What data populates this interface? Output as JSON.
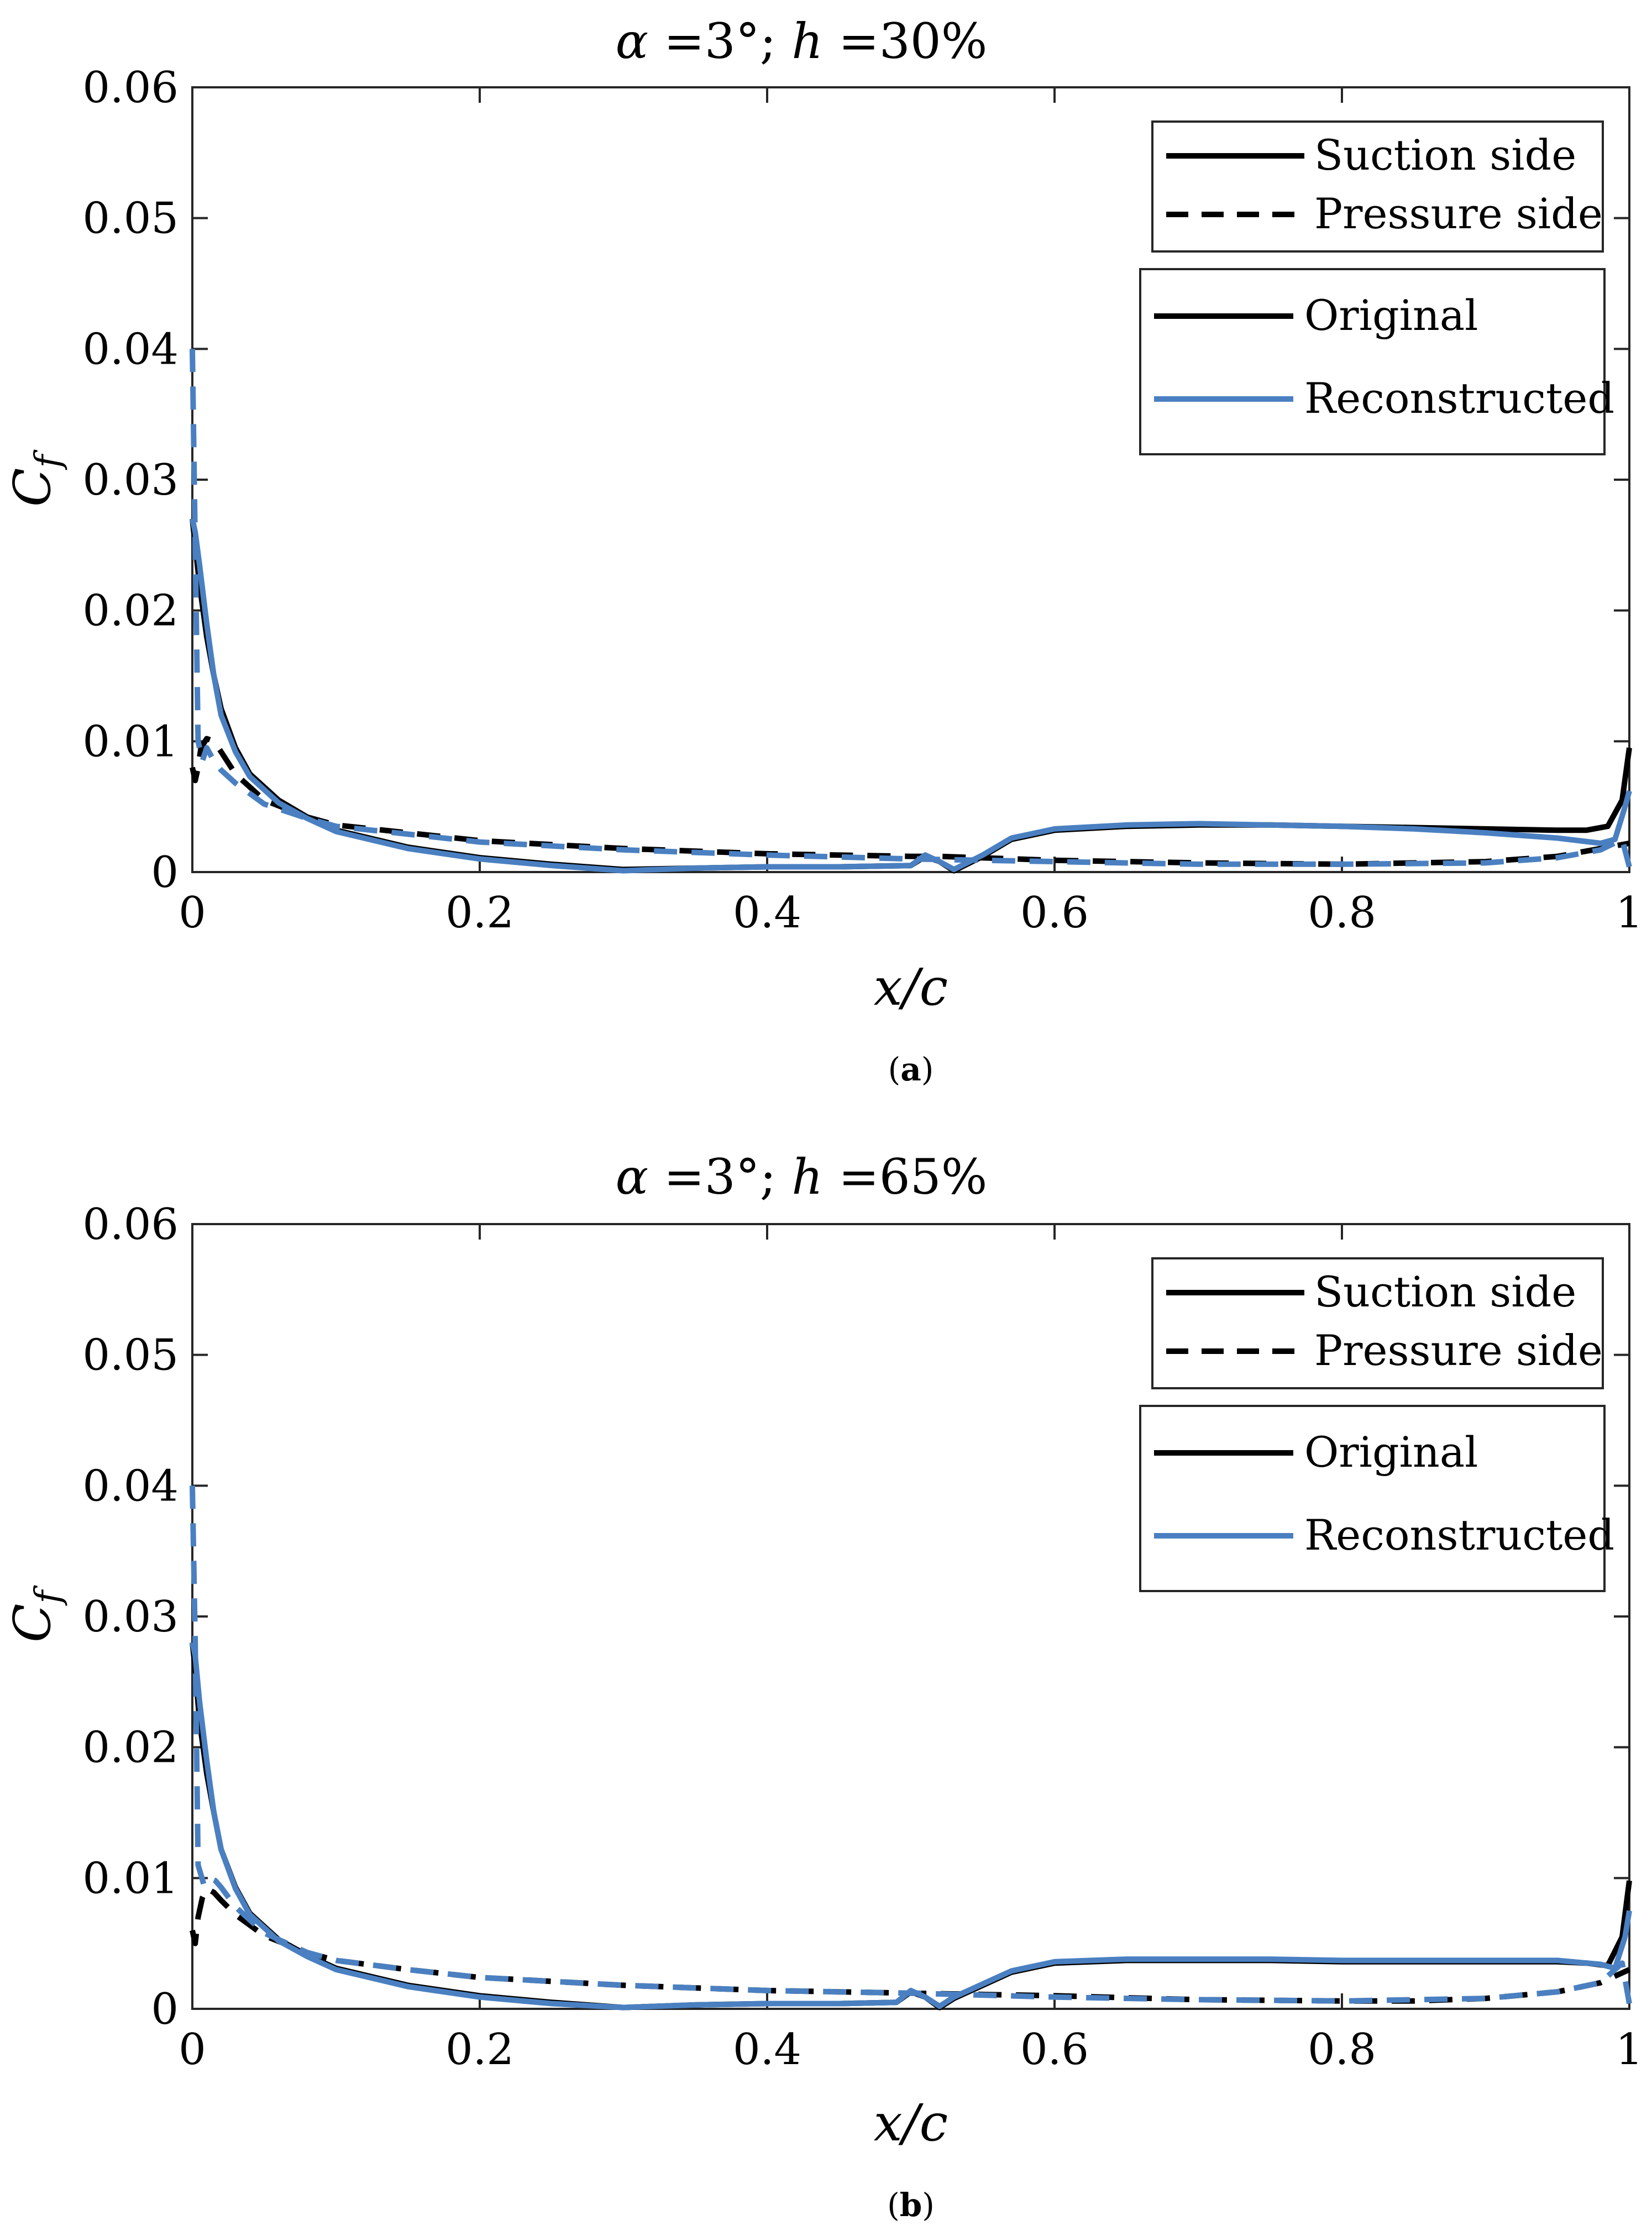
{
  "chart_data": [
    {
      "type": "line",
      "id": "a",
      "title": {
        "alpha": "α",
        "eq1": " =",
        "angle": "3°",
        "sep": "; ",
        "h": "h",
        "eq2": " =",
        "pct": "30%"
      },
      "xlabel": "x/c",
      "ylabel": {
        "main": "C",
        "sub": "f"
      },
      "caption": {
        "open": "(",
        "letter": "a",
        "close": ")"
      },
      "xlim": [
        0,
        1
      ],
      "ylim": [
        0,
        0.06
      ],
      "xticks": [
        0,
        0.2,
        0.4,
        0.6,
        0.8,
        1
      ],
      "xtick_labels": [
        "0",
        "0.2",
        "0.4",
        "0.6",
        "0.8",
        "1"
      ],
      "yticks": [
        0,
        0.01,
        0.02,
        0.03,
        0.04,
        0.05,
        0.06
      ],
      "ytick_labels": [
        "0",
        "0.01",
        "0.02",
        "0.03",
        "0.04",
        "0.05",
        "0.06"
      ],
      "legend_linestyle": [
        {
          "label": "Suction side",
          "style": "solid"
        },
        {
          "label": "Pressure side",
          "style": "dashed"
        }
      ],
      "legend_source": [
        {
          "label": "Original",
          "color": "#000000"
        },
        {
          "label": "Reconstructed",
          "color": "#4a80c1"
        }
      ],
      "series": [
        {
          "name": "Original suction side",
          "color": "#000000",
          "style": "solid",
          "x": [
            0,
            0.002,
            0.005,
            0.01,
            0.015,
            0.02,
            0.03,
            0.04,
            0.06,
            0.08,
            0.1,
            0.15,
            0.2,
            0.25,
            0.3,
            0.35,
            0.4,
            0.45,
            0.5,
            0.51,
            0.52,
            0.53,
            0.55,
            0.57,
            0.6,
            0.65,
            0.7,
            0.75,
            0.8,
            0.85,
            0.9,
            0.95,
            0.97,
            0.985,
            0.995,
            1.0
          ],
          "y": [
            0.027,
            0.025,
            0.022,
            0.018,
            0.015,
            0.0125,
            0.0095,
            0.0075,
            0.0055,
            0.0042,
            0.0032,
            0.0019,
            0.0011,
            0.0006,
            0.0002,
            0.0003,
            0.0004,
            0.0004,
            0.0005,
            0.0012,
            0.0008,
            0.0001,
            0.0012,
            0.0025,
            0.0032,
            0.0035,
            0.0036,
            0.0036,
            0.0035,
            0.0034,
            0.0033,
            0.0032,
            0.0032,
            0.0035,
            0.0055,
            0.0095
          ]
        },
        {
          "name": "Original pressure side",
          "color": "#000000",
          "style": "dashed",
          "x": [
            0,
            0.002,
            0.004,
            0.006,
            0.01,
            0.015,
            0.02,
            0.03,
            0.05,
            0.08,
            0.1,
            0.15,
            0.2,
            0.3,
            0.4,
            0.5,
            0.52,
            0.6,
            0.7,
            0.8,
            0.9,
            0.95,
            0.98,
            1.0
          ],
          "y": [
            0.008,
            0.007,
            0.008,
            0.0095,
            0.0102,
            0.01,
            0.0092,
            0.0075,
            0.0055,
            0.0042,
            0.0036,
            0.003,
            0.0024,
            0.0018,
            0.0014,
            0.0012,
            0.0012,
            0.0009,
            0.0007,
            0.0006,
            0.0008,
            0.0012,
            0.0018,
            0.0022
          ]
        },
        {
          "name": "Reconstructed suction side",
          "color": "#4a80c1",
          "style": "solid",
          "x": [
            0,
            0.002,
            0.005,
            0.01,
            0.015,
            0.02,
            0.03,
            0.04,
            0.06,
            0.08,
            0.1,
            0.15,
            0.2,
            0.25,
            0.3,
            0.35,
            0.4,
            0.45,
            0.5,
            0.51,
            0.52,
            0.53,
            0.55,
            0.57,
            0.6,
            0.65,
            0.7,
            0.75,
            0.8,
            0.85,
            0.9,
            0.95,
            0.98,
            0.99,
            0.997,
            1.0
          ],
          "y": [
            0.027,
            0.026,
            0.0235,
            0.019,
            0.015,
            0.012,
            0.0092,
            0.0073,
            0.0053,
            0.0041,
            0.0031,
            0.0018,
            0.001,
            0.0005,
            0.0001,
            0.0003,
            0.0004,
            0.0004,
            0.0005,
            0.0013,
            0.0008,
            0.0002,
            0.0013,
            0.0026,
            0.0033,
            0.0036,
            0.0037,
            0.0036,
            0.0035,
            0.0033,
            0.003,
            0.0026,
            0.0022,
            0.0025,
            0.005,
            0.0062
          ]
        },
        {
          "name": "Reconstructed pressure side",
          "color": "#4a80c1",
          "style": "dashed",
          "x": [
            0,
            0.002,
            0.004,
            0.007,
            0.01,
            0.015,
            0.02,
            0.03,
            0.05,
            0.08,
            0.1,
            0.15,
            0.2,
            0.3,
            0.4,
            0.5,
            0.6,
            0.7,
            0.8,
            0.9,
            0.95,
            0.98,
            0.995,
            1.0
          ],
          "y": [
            0.04,
            0.025,
            0.01,
            0.0085,
            0.0095,
            0.0085,
            0.0078,
            0.0068,
            0.0052,
            0.0041,
            0.0035,
            0.0029,
            0.0023,
            0.0017,
            0.0013,
            0.001,
            0.0008,
            0.0006,
            0.0006,
            0.0007,
            0.0011,
            0.0017,
            0.0025,
            0.0004
          ]
        }
      ]
    },
    {
      "type": "line",
      "id": "b",
      "title": {
        "alpha": "α",
        "eq1": " =",
        "angle": "3°",
        "sep": "; ",
        "h": "h",
        "eq2": " =",
        "pct": "65%"
      },
      "xlabel": "x/c",
      "ylabel": {
        "main": "C",
        "sub": "f"
      },
      "caption": {
        "open": "(",
        "letter": "b",
        "close": ")"
      },
      "xlim": [
        0,
        1
      ],
      "ylim": [
        0,
        0.06
      ],
      "xticks": [
        0,
        0.2,
        0.4,
        0.6,
        0.8,
        1
      ],
      "xtick_labels": [
        "0",
        "0.2",
        "0.4",
        "0.6",
        "0.8",
        "1"
      ],
      "yticks": [
        0,
        0.01,
        0.02,
        0.03,
        0.04,
        0.05,
        0.06
      ],
      "ytick_labels": [
        "0",
        "0.01",
        "0.02",
        "0.03",
        "0.04",
        "0.05",
        "0.06"
      ],
      "legend_linestyle": [
        {
          "label": "Suction side",
          "style": "solid"
        },
        {
          "label": "Pressure side",
          "style": "dashed"
        }
      ],
      "legend_source": [
        {
          "label": "Original",
          "color": "#000000"
        },
        {
          "label": "Reconstructed",
          "color": "#4a80c1"
        }
      ],
      "series": [
        {
          "name": "Original suction side",
          "color": "#000000",
          "style": "solid",
          "x": [
            0,
            0.002,
            0.005,
            0.01,
            0.015,
            0.02,
            0.03,
            0.04,
            0.06,
            0.08,
            0.1,
            0.15,
            0.2,
            0.25,
            0.3,
            0.35,
            0.4,
            0.45,
            0.49,
            0.5,
            0.51,
            0.52,
            0.53,
            0.55,
            0.57,
            0.6,
            0.65,
            0.7,
            0.75,
            0.8,
            0.85,
            0.9,
            0.95,
            0.97,
            0.985,
            0.995,
            1.0
          ],
          "y": [
            0.028,
            0.026,
            0.022,
            0.018,
            0.015,
            0.0122,
            0.0093,
            0.0073,
            0.0053,
            0.0041,
            0.0031,
            0.0018,
            0.001,
            0.0005,
            0.0001,
            0.0003,
            0.0004,
            0.0004,
            0.0005,
            0.0013,
            0.0009,
            0.0001,
            0.0008,
            0.0018,
            0.0028,
            0.0035,
            0.0037,
            0.0037,
            0.0037,
            0.0036,
            0.0036,
            0.0036,
            0.0036,
            0.0035,
            0.0033,
            0.0055,
            0.0098
          ]
        },
        {
          "name": "Original pressure side",
          "color": "#000000",
          "style": "dashed",
          "x": [
            0,
            0.002,
            0.004,
            0.007,
            0.01,
            0.015,
            0.02,
            0.03,
            0.05,
            0.08,
            0.1,
            0.15,
            0.2,
            0.3,
            0.4,
            0.5,
            0.6,
            0.7,
            0.8,
            0.85,
            0.9,
            0.95,
            0.98,
            1.0
          ],
          "y": [
            0.006,
            0.005,
            0.007,
            0.0085,
            0.0092,
            0.0089,
            0.0083,
            0.0072,
            0.0056,
            0.0043,
            0.0037,
            0.003,
            0.0024,
            0.0018,
            0.0014,
            0.0012,
            0.001,
            0.0007,
            0.0006,
            0.0006,
            0.0008,
            0.0013,
            0.002,
            0.003
          ]
        },
        {
          "name": "Reconstructed suction side",
          "color": "#4a80c1",
          "style": "solid",
          "x": [
            0,
            0.002,
            0.005,
            0.01,
            0.015,
            0.02,
            0.03,
            0.04,
            0.06,
            0.08,
            0.1,
            0.15,
            0.2,
            0.25,
            0.3,
            0.35,
            0.4,
            0.45,
            0.49,
            0.5,
            0.51,
            0.52,
            0.53,
            0.55,
            0.57,
            0.6,
            0.65,
            0.7,
            0.75,
            0.8,
            0.85,
            0.9,
            0.95,
            0.98,
            0.99,
            0.997,
            1.0
          ],
          "y": [
            0.028,
            0.027,
            0.0235,
            0.019,
            0.015,
            0.0122,
            0.0092,
            0.0072,
            0.0052,
            0.004,
            0.003,
            0.0017,
            0.0009,
            0.0004,
            0.0001,
            0.0003,
            0.0004,
            0.0004,
            0.0005,
            0.0014,
            0.0009,
            0.0002,
            0.0009,
            0.0019,
            0.0029,
            0.0036,
            0.0038,
            0.0038,
            0.0038,
            0.0037,
            0.0037,
            0.0037,
            0.0037,
            0.0034,
            0.0031,
            0.0055,
            0.0075
          ]
        },
        {
          "name": "Reconstructed pressure side",
          "color": "#4a80c1",
          "style": "dashed",
          "x": [
            0,
            0.002,
            0.004,
            0.008,
            0.012,
            0.016,
            0.02,
            0.03,
            0.05,
            0.08,
            0.1,
            0.15,
            0.2,
            0.3,
            0.4,
            0.5,
            0.6,
            0.7,
            0.8,
            0.9,
            0.95,
            0.98,
            0.995,
            1.0
          ],
          "y": [
            0.04,
            0.028,
            0.011,
            0.0095,
            0.01,
            0.0098,
            0.0093,
            0.0078,
            0.0058,
            0.0043,
            0.0037,
            0.003,
            0.0024,
            0.0018,
            0.0014,
            0.0012,
            0.0009,
            0.0007,
            0.0006,
            0.0008,
            0.0013,
            0.002,
            0.0035,
            0.0004
          ]
        }
      ]
    }
  ]
}
